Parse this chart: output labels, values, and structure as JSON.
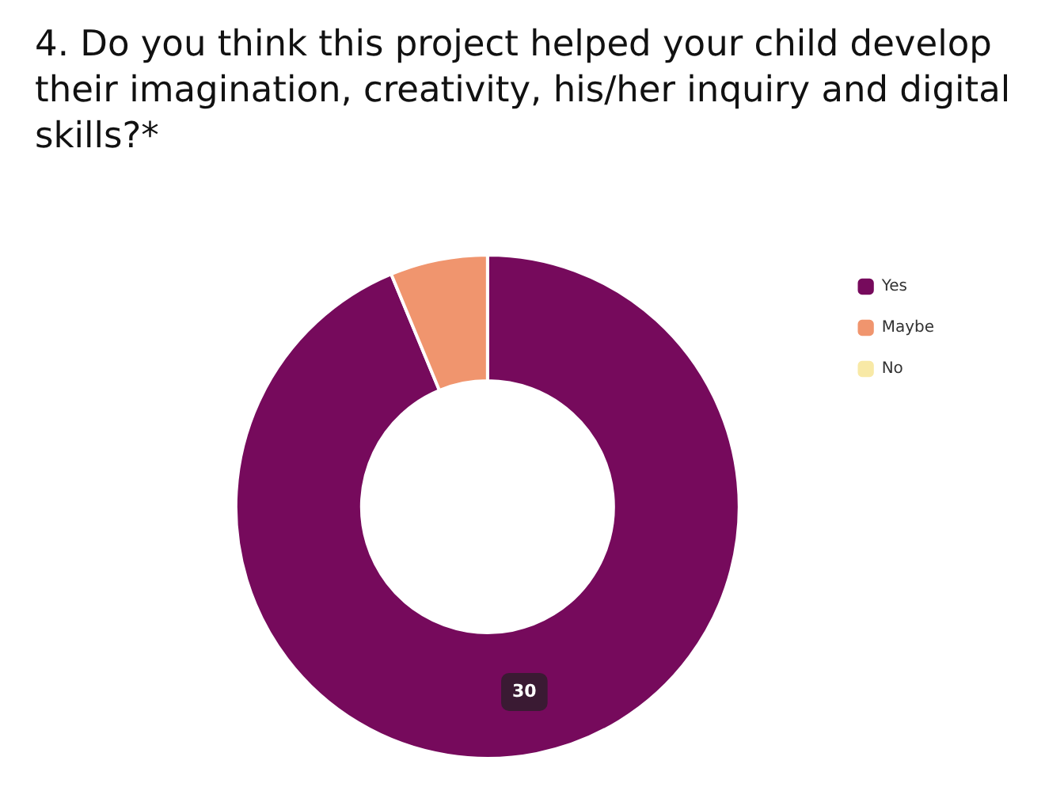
{
  "chart_data": {
    "type": "donut",
    "title": "4. Do you think this project helped your child develop their imagination, creativity, his/her inquiry and digital skills?*",
    "categories": [
      "Yes",
      "Maybe",
      "No"
    ],
    "values": [
      30,
      2,
      0
    ],
    "colors": [
      "#760a5c",
      "#f0956e",
      "#f8e9a6"
    ],
    "value_labels": [
      "30",
      null,
      null
    ],
    "legend": "top right"
  }
}
